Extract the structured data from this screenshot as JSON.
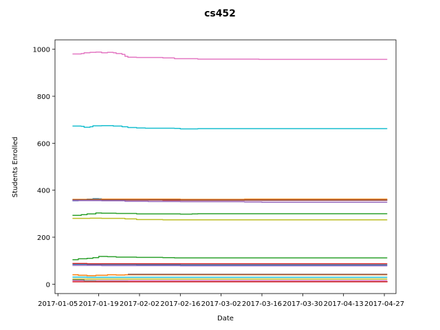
{
  "chart_data": {
    "type": "line",
    "title": "cs452",
    "xlabel": "Date",
    "ylabel": "Students Enrolled",
    "x_axis_type": "date",
    "xlim": [
      "2017-01-04",
      "2017-05-01"
    ],
    "ylim": [
      -40,
      1040
    ],
    "xticks": [
      "2017-01-05",
      "2017-01-19",
      "2017-02-02",
      "2017-02-16",
      "2017-03-02",
      "2017-03-16",
      "2017-03-30",
      "2017-04-13",
      "2017-04-27"
    ],
    "yticks": [
      0,
      200,
      400,
      600,
      800,
      1000
    ],
    "grid": false,
    "legend": "none",
    "series": [
      {
        "color": "#e377c2",
        "points": [
          [
            "2017-01-10",
            980
          ],
          [
            "2017-01-13",
            982
          ],
          [
            "2017-01-14",
            985
          ],
          [
            "2017-01-16",
            987
          ],
          [
            "2017-01-18",
            988
          ],
          [
            "2017-01-20",
            985
          ],
          [
            "2017-01-22",
            987
          ],
          [
            "2017-01-24",
            985
          ],
          [
            "2017-01-25",
            982
          ],
          [
            "2017-01-27",
            978
          ],
          [
            "2017-01-28",
            970
          ],
          [
            "2017-01-29",
            966
          ],
          [
            "2017-02-01",
            965
          ],
          [
            "2017-02-10",
            963
          ],
          [
            "2017-02-14",
            960
          ],
          [
            "2017-02-20",
            960
          ],
          [
            "2017-02-22",
            958
          ],
          [
            "2017-03-05",
            958
          ],
          [
            "2017-03-15",
            957
          ],
          [
            "2017-04-28",
            957
          ]
        ]
      },
      {
        "color": "#17becf",
        "points": [
          [
            "2017-01-10",
            673
          ],
          [
            "2017-01-13",
            672
          ],
          [
            "2017-01-14",
            668
          ],
          [
            "2017-01-16",
            670
          ],
          [
            "2017-01-17",
            674
          ],
          [
            "2017-01-20",
            675
          ],
          [
            "2017-01-24",
            673
          ],
          [
            "2017-01-27",
            670
          ],
          [
            "2017-01-29",
            667
          ],
          [
            "2017-02-01",
            665
          ],
          [
            "2017-02-04",
            664
          ],
          [
            "2017-02-14",
            663
          ],
          [
            "2017-02-16",
            661
          ],
          [
            "2017-02-22",
            662
          ],
          [
            "2017-04-28",
            662
          ]
        ]
      },
      {
        "color": "#1f77b4",
        "points": [
          [
            "2017-01-10",
            355
          ],
          [
            "2017-01-12",
            360
          ],
          [
            "2017-01-15",
            362
          ],
          [
            "2017-01-17",
            364
          ],
          [
            "2017-01-19",
            363
          ],
          [
            "2017-01-20",
            360
          ],
          [
            "2017-02-01",
            360
          ],
          [
            "2017-04-28",
            360
          ]
        ]
      },
      {
        "color": "#d62728",
        "points": [
          [
            "2017-01-10",
            358
          ],
          [
            "2017-01-20",
            358
          ],
          [
            "2017-02-10",
            357
          ],
          [
            "2017-03-01",
            357
          ],
          [
            "2017-04-28",
            357
          ]
        ]
      },
      {
        "color": "#ff7f0e",
        "points": [
          [
            "2017-01-10",
            361
          ],
          [
            "2017-01-20",
            362
          ],
          [
            "2017-02-16",
            361
          ],
          [
            "2017-03-10",
            362
          ],
          [
            "2017-04-28",
            362
          ]
        ]
      },
      {
        "color": "#8c564b",
        "points": [
          [
            "2017-01-10",
            359
          ],
          [
            "2017-02-01",
            359
          ],
          [
            "2017-02-16",
            358
          ],
          [
            "2017-04-28",
            358
          ]
        ]
      },
      {
        "color": "#9467bd",
        "points": [
          [
            "2017-01-10",
            356
          ],
          [
            "2017-01-20",
            355
          ],
          [
            "2017-01-28",
            353
          ],
          [
            "2017-02-05",
            352
          ],
          [
            "2017-02-16",
            351
          ],
          [
            "2017-03-10",
            350
          ],
          [
            "2017-03-16",
            349
          ],
          [
            "2017-04-28",
            349
          ]
        ]
      },
      {
        "color": "#2ca02c",
        "points": [
          [
            "2017-01-10",
            293
          ],
          [
            "2017-01-13",
            296
          ],
          [
            "2017-01-15",
            299
          ],
          [
            "2017-01-18",
            303
          ],
          [
            "2017-01-20",
            302
          ],
          [
            "2017-01-25",
            301
          ],
          [
            "2017-02-01",
            299
          ],
          [
            "2017-02-16",
            298
          ],
          [
            "2017-02-20",
            299
          ],
          [
            "2017-02-22",
            300
          ],
          [
            "2017-04-28",
            300
          ]
        ]
      },
      {
        "color": "#bcbd22",
        "points": [
          [
            "2017-01-10",
            280
          ],
          [
            "2017-01-16",
            281
          ],
          [
            "2017-01-20",
            280
          ],
          [
            "2017-01-28",
            278
          ],
          [
            "2017-02-01",
            275
          ],
          [
            "2017-02-10",
            274
          ],
          [
            "2017-04-28",
            274
          ]
        ]
      },
      {
        "color": "#2ca02c",
        "points": [
          [
            "2017-01-10",
            104
          ],
          [
            "2017-01-12",
            108
          ],
          [
            "2017-01-15",
            110
          ],
          [
            "2017-01-17",
            113
          ],
          [
            "2017-01-19",
            118
          ],
          [
            "2017-01-22",
            117
          ],
          [
            "2017-01-25",
            115
          ],
          [
            "2017-02-01",
            114
          ],
          [
            "2017-02-10",
            113
          ],
          [
            "2017-02-14",
            112
          ],
          [
            "2017-04-28",
            112
          ]
        ]
      },
      {
        "color": "#1f77b4",
        "points": [
          [
            "2017-01-10",
            85
          ],
          [
            "2017-01-15",
            84
          ],
          [
            "2017-01-20",
            84
          ],
          [
            "2017-02-01",
            83
          ],
          [
            "2017-02-16",
            82
          ],
          [
            "2017-04-28",
            82
          ]
        ]
      },
      {
        "color": "#d62728",
        "points": [
          [
            "2017-01-10",
            88
          ],
          [
            "2017-01-15",
            87
          ],
          [
            "2017-02-01",
            87
          ],
          [
            "2017-04-28",
            87
          ]
        ]
      },
      {
        "color": "#9467bd",
        "points": [
          [
            "2017-01-10",
            80
          ],
          [
            "2017-01-20",
            79
          ],
          [
            "2017-02-16",
            78
          ],
          [
            "2017-04-28",
            78
          ]
        ]
      },
      {
        "color": "#ff7f0e",
        "points": [
          [
            "2017-01-10",
            40
          ],
          [
            "2017-01-12",
            38
          ],
          [
            "2017-01-15",
            36
          ],
          [
            "2017-01-18",
            38
          ],
          [
            "2017-01-22",
            40
          ],
          [
            "2017-01-25",
            39
          ],
          [
            "2017-01-28",
            40
          ],
          [
            "2017-04-28",
            40
          ]
        ]
      },
      {
        "color": "#8c564b",
        "points": [
          [
            "2017-01-29",
            42
          ],
          [
            "2017-04-28",
            42
          ]
        ]
      },
      {
        "color": "#17becf",
        "points": [
          [
            "2017-01-10",
            30
          ],
          [
            "2017-01-15",
            29
          ],
          [
            "2017-02-01",
            29
          ],
          [
            "2017-04-28",
            29
          ]
        ]
      },
      {
        "color": "#bcbd22",
        "points": [
          [
            "2017-01-10",
            22
          ],
          [
            "2017-01-20",
            22
          ],
          [
            "2017-04-28",
            22
          ]
        ]
      },
      {
        "color": "#e377c2",
        "points": [
          [
            "2017-01-10",
            15
          ],
          [
            "2017-01-20",
            15
          ],
          [
            "2017-04-28",
            15
          ]
        ]
      },
      {
        "color": "#7f7f7f",
        "points": [
          [
            "2017-01-10",
            18
          ],
          [
            "2017-01-14",
            14
          ],
          [
            "2017-01-18",
            12
          ],
          [
            "2017-01-22",
            12
          ],
          [
            "2017-01-29",
            11
          ],
          [
            "2017-04-28",
            11
          ]
        ]
      },
      {
        "color": "#d62728",
        "points": [
          [
            "2017-01-10",
            10
          ],
          [
            "2017-01-20",
            10
          ],
          [
            "2017-04-28",
            9
          ]
        ]
      }
    ]
  }
}
